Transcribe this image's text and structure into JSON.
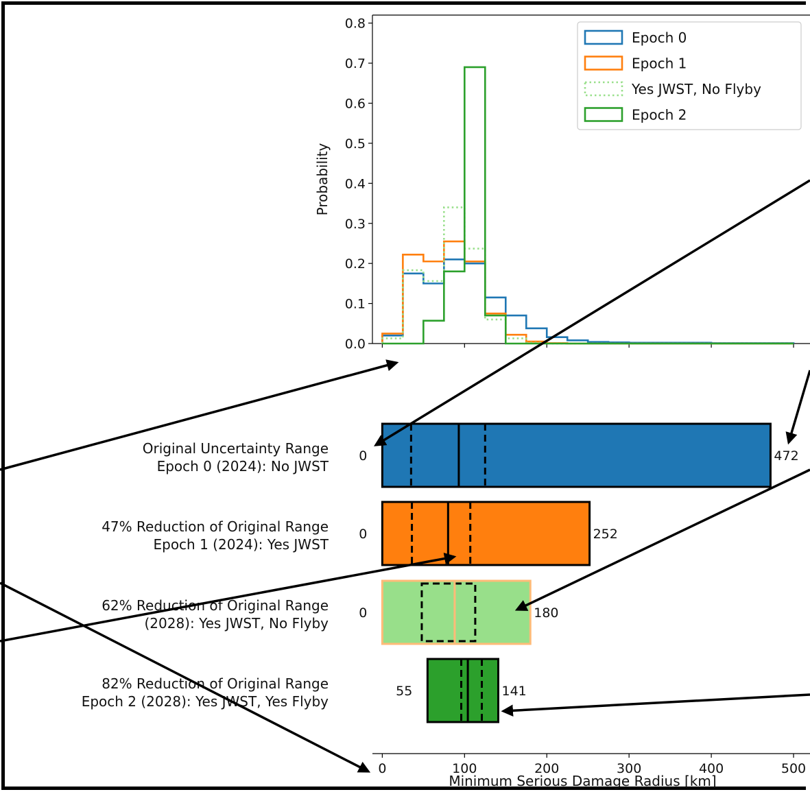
{
  "chart_data": [
    {
      "type": "step-histogram",
      "ylabel": "Probability",
      "xlim": [
        -12,
        520
      ],
      "ylim": [
        0,
        0.82
      ],
      "yticks": [
        "0.0",
        "0.1",
        "0.2",
        "0.3",
        "0.4",
        "0.5",
        "0.6",
        "0.7",
        "0.8"
      ],
      "ytick_values": [
        0,
        0.1,
        0.2,
        0.3,
        0.4,
        0.5,
        0.6,
        0.7,
        0.8
      ],
      "xticks": [
        0,
        100,
        200,
        300,
        400,
        500
      ],
      "bin_edges": [
        0,
        25,
        50,
        75,
        100,
        125,
        150,
        175,
        200,
        225,
        250,
        275,
        300,
        325,
        350,
        375,
        400,
        425,
        450,
        475,
        500
      ],
      "legend_position": "top-right",
      "series": [
        {
          "name": "Epoch 0",
          "color": "#1f77b4",
          "style": "solid",
          "values": [
            0.02,
            0.175,
            0.15,
            0.21,
            0.2,
            0.115,
            0.07,
            0.038,
            0.016,
            0.008,
            0.004,
            0.003,
            0.002,
            0.002,
            0.002,
            0.002,
            0.001,
            0.001,
            0.001,
            0.001
          ]
        },
        {
          "name": "Epoch 1",
          "color": "#ff7f0e",
          "style": "solid",
          "values": [
            0.025,
            0.222,
            0.205,
            0.255,
            0.205,
            0.075,
            0.022,
            0.005,
            0.001,
            0,
            0,
            0,
            0,
            0,
            0,
            0,
            0,
            0,
            0,
            0
          ]
        },
        {
          "name": "Yes JWST, No Flyby",
          "color": "#98df8a",
          "style": "dotted",
          "values": [
            0.013,
            0.183,
            0.156,
            0.34,
            0.237,
            0.06,
            0.013,
            0.002,
            0,
            0,
            0,
            0,
            0,
            0,
            0,
            0,
            0,
            0,
            0,
            0
          ]
        },
        {
          "name": "Epoch 2",
          "color": "#2ca02c",
          "style": "solid",
          "values": [
            0,
            0,
            0.057,
            0.18,
            0.69,
            0.07,
            0,
            0,
            0,
            0,
            0,
            0,
            0,
            0,
            0,
            0,
            0,
            0,
            0,
            0
          ]
        }
      ]
    },
    {
      "type": "range-bar",
      "xlabel": "Minimum Serious Damage Radius [km]",
      "xlim": [
        -12,
        520
      ],
      "xticks": [
        0,
        100,
        200,
        300,
        400,
        500
      ],
      "bars": [
        {
          "label_line1": "Original Uncertainty Range",
          "label_line2": "Epoch 0 (2024): No JWST",
          "min": 0,
          "max": 472,
          "min_label": "0",
          "max_label": "472",
          "median": 93,
          "q_low": 35,
          "q_high": 125,
          "fill": "#1f77b4",
          "edge": "#000000"
        },
        {
          "label_line1": "47% Reduction of Original Range",
          "label_line2": "Epoch 1 (2024): Yes JWST",
          "min": 0,
          "max": 252,
          "min_label": "0",
          "max_label": "252",
          "median": 80,
          "q_low": 36,
          "q_high": 107,
          "fill": "#ff7f0e",
          "edge": "#000000"
        },
        {
          "label_line1": "62% Reduction of Original Range",
          "label_line2": "(2028): Yes JWST, No Flyby",
          "min": 0,
          "max": 180,
          "min_label": "0",
          "max_label": "180",
          "median": 88,
          "q_low": 48,
          "q_high": 113,
          "fill": "#98df8a",
          "edge": "#ffbb78"
        },
        {
          "label_line1": "82% Reduction of Original Range",
          "label_line2": "Epoch 2 (2028): Yes JWST, Yes Flyby",
          "min": 55,
          "max": 141,
          "min_label": "55",
          "max_label": "141",
          "median": 104,
          "q_low": 96,
          "q_high": 121,
          "fill": "#2ca02c",
          "edge": "#000000"
        }
      ]
    }
  ]
}
